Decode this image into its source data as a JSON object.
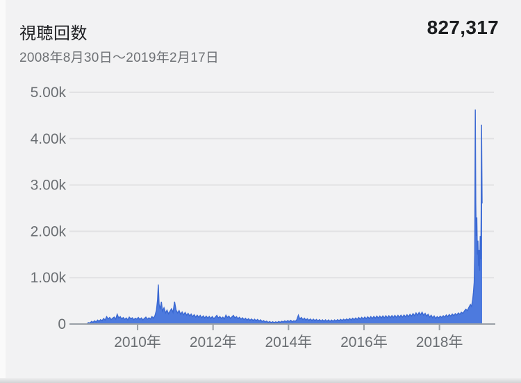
{
  "header": {
    "title": "視聴回数",
    "total": "827,317",
    "date_range": "2008年8月30日〜2019年2月17日"
  },
  "chart_data": {
    "type": "area",
    "title": "視聴回数",
    "total_views": 827317,
    "date_range_label": "2008年8月30日〜2019年2月17日",
    "xlim": [
      2008.655,
      2019.13
    ],
    "ylim": [
      0,
      5000
    ],
    "grid": "horizontal",
    "legend": "none",
    "x_ticks": [
      {
        "v": 2010,
        "label": "2010年"
      },
      {
        "v": 2012,
        "label": "2012年"
      },
      {
        "v": 2014,
        "label": "2014年"
      },
      {
        "v": 2016,
        "label": "2016年"
      },
      {
        "v": 2018,
        "label": "2018年"
      }
    ],
    "y_ticks": [
      {
        "v": 5000,
        "label": "5.00k"
      },
      {
        "v": 4000,
        "label": "4.00k"
      },
      {
        "v": 3000,
        "label": "3.00k"
      },
      {
        "v": 2000,
        "label": "2.00k"
      },
      {
        "v": 1000,
        "label": "1.00k"
      },
      {
        "v": 0,
        "label": "0"
      }
    ],
    "colors": {
      "area_fill": "#4d7ade",
      "area_stroke": "#3a68d2",
      "grid": "#e1e1e3",
      "axis": "#9aa0a6",
      "tick_text": "#6b6f73",
      "title_text": "#202124",
      "total_text": "#1b1d1f"
    },
    "series": [
      {
        "name": "視聴回数",
        "points": [
          [
            2008.66,
            8
          ],
          [
            2008.7,
            30
          ],
          [
            2008.74,
            22
          ],
          [
            2008.78,
            55
          ],
          [
            2008.82,
            38
          ],
          [
            2008.86,
            70
          ],
          [
            2008.9,
            45
          ],
          [
            2008.94,
            85
          ],
          [
            2008.98,
            60
          ],
          [
            2009.02,
            95
          ],
          [
            2009.06,
            70
          ],
          [
            2009.1,
            120
          ],
          [
            2009.14,
            85
          ],
          [
            2009.18,
            160
          ],
          [
            2009.22,
            110
          ],
          [
            2009.26,
            140
          ],
          [
            2009.3,
            95
          ],
          [
            2009.34,
            125
          ],
          [
            2009.38,
            150
          ],
          [
            2009.42,
            105
          ],
          [
            2009.46,
            210
          ],
          [
            2009.5,
            130
          ],
          [
            2009.54,
            160
          ],
          [
            2009.58,
            110
          ],
          [
            2009.62,
            140
          ],
          [
            2009.66,
            100
          ],
          [
            2009.7,
            130
          ],
          [
            2009.74,
            90
          ],
          [
            2009.78,
            150
          ],
          [
            2009.82,
            115
          ],
          [
            2009.86,
            135
          ],
          [
            2009.9,
            95
          ],
          [
            2009.94,
            125
          ],
          [
            2009.98,
            105
          ],
          [
            2010.02,
            140
          ],
          [
            2010.06,
            100
          ],
          [
            2010.1,
            130
          ],
          [
            2010.14,
            90
          ],
          [
            2010.18,
            120
          ],
          [
            2010.22,
            150
          ],
          [
            2010.26,
            105
          ],
          [
            2010.3,
            135
          ],
          [
            2010.34,
            110
          ],
          [
            2010.38,
            160
          ],
          [
            2010.42,
            125
          ],
          [
            2010.46,
            180
          ],
          [
            2010.5,
            300
          ],
          [
            2010.53,
            520
          ],
          [
            2010.55,
            850
          ],
          [
            2010.57,
            430
          ],
          [
            2010.6,
            320
          ],
          [
            2010.63,
            480
          ],
          [
            2010.66,
            280
          ],
          [
            2010.7,
            350
          ],
          [
            2010.74,
            240
          ],
          [
            2010.78,
            300
          ],
          [
            2010.82,
            220
          ],
          [
            2010.86,
            280
          ],
          [
            2010.9,
            330
          ],
          [
            2010.94,
            250
          ],
          [
            2010.98,
            480
          ],
          [
            2011.02,
            300
          ],
          [
            2011.06,
            240
          ],
          [
            2011.1,
            290
          ],
          [
            2011.14,
            210
          ],
          [
            2011.18,
            260
          ],
          [
            2011.22,
            200
          ],
          [
            2011.26,
            250
          ],
          [
            2011.3,
            190
          ],
          [
            2011.34,
            230
          ],
          [
            2011.38,
            175
          ],
          [
            2011.42,
            215
          ],
          [
            2011.46,
            160
          ],
          [
            2011.5,
            200
          ],
          [
            2011.54,
            150
          ],
          [
            2011.58,
            190
          ],
          [
            2011.62,
            145
          ],
          [
            2011.66,
            185
          ],
          [
            2011.7,
            135
          ],
          [
            2011.74,
            175
          ],
          [
            2011.78,
            130
          ],
          [
            2011.82,
            170
          ],
          [
            2011.86,
            125
          ],
          [
            2011.9,
            165
          ],
          [
            2011.94,
            120
          ],
          [
            2011.98,
            160
          ],
          [
            2012.02,
            115
          ],
          [
            2012.06,
            150
          ],
          [
            2012.1,
            185
          ],
          [
            2012.14,
            130
          ],
          [
            2012.18,
            160
          ],
          [
            2012.22,
            120
          ],
          [
            2012.26,
            150
          ],
          [
            2012.3,
            110
          ],
          [
            2012.34,
            190
          ],
          [
            2012.38,
            140
          ],
          [
            2012.42,
            170
          ],
          [
            2012.46,
            120
          ],
          [
            2012.5,
            155
          ],
          [
            2012.54,
            185
          ],
          [
            2012.58,
            130
          ],
          [
            2012.62,
            160
          ],
          [
            2012.66,
            115
          ],
          [
            2012.7,
            145
          ],
          [
            2012.74,
            105
          ],
          [
            2012.78,
            135
          ],
          [
            2012.82,
            95
          ],
          [
            2012.86,
            125
          ],
          [
            2012.9,
            85
          ],
          [
            2012.94,
            115
          ],
          [
            2012.98,
            80
          ],
          [
            2013.02,
            110
          ],
          [
            2013.06,
            75
          ],
          [
            2013.1,
            105
          ],
          [
            2013.14,
            70
          ],
          [
            2013.18,
            100
          ],
          [
            2013.22,
            65
          ],
          [
            2013.26,
            90
          ],
          [
            2013.3,
            55
          ],
          [
            2013.34,
            75
          ],
          [
            2013.38,
            45
          ],
          [
            2013.42,
            65
          ],
          [
            2013.46,
            35
          ],
          [
            2013.5,
            55
          ],
          [
            2013.54,
            30
          ],
          [
            2013.58,
            50
          ],
          [
            2013.62,
            28
          ],
          [
            2013.66,
            48
          ],
          [
            2013.7,
            32
          ],
          [
            2013.74,
            55
          ],
          [
            2013.78,
            38
          ],
          [
            2013.82,
            60
          ],
          [
            2013.86,
            45
          ],
          [
            2013.9,
            70
          ],
          [
            2013.94,
            50
          ],
          [
            2013.98,
            75
          ],
          [
            2014.02,
            55
          ],
          [
            2014.06,
            80
          ],
          [
            2014.1,
            48
          ],
          [
            2014.14,
            72
          ],
          [
            2014.18,
            58
          ],
          [
            2014.22,
            95
          ],
          [
            2014.26,
            190
          ],
          [
            2014.3,
            110
          ],
          [
            2014.34,
            140
          ],
          [
            2014.38,
            95
          ],
          [
            2014.42,
            125
          ],
          [
            2014.46,
            85
          ],
          [
            2014.5,
            115
          ],
          [
            2014.54,
            80
          ],
          [
            2014.58,
            110
          ],
          [
            2014.62,
            75
          ],
          [
            2014.66,
            105
          ],
          [
            2014.7,
            70
          ],
          [
            2014.74,
            100
          ],
          [
            2014.78,
            68
          ],
          [
            2014.82,
            95
          ],
          [
            2014.86,
            65
          ],
          [
            2014.9,
            92
          ],
          [
            2014.94,
            62
          ],
          [
            2014.98,
            90
          ],
          [
            2015.02,
            60
          ],
          [
            2015.06,
            88
          ],
          [
            2015.1,
            58
          ],
          [
            2015.14,
            85
          ],
          [
            2015.18,
            60
          ],
          [
            2015.22,
            90
          ],
          [
            2015.26,
            65
          ],
          [
            2015.3,
            95
          ],
          [
            2015.34,
            70
          ],
          [
            2015.38,
            100
          ],
          [
            2015.42,
            75
          ],
          [
            2015.46,
            105
          ],
          [
            2015.5,
            80
          ],
          [
            2015.54,
            110
          ],
          [
            2015.58,
            85
          ],
          [
            2015.62,
            120
          ],
          [
            2015.66,
            90
          ],
          [
            2015.7,
            125
          ],
          [
            2015.74,
            95
          ],
          [
            2015.78,
            130
          ],
          [
            2015.82,
            100
          ],
          [
            2015.86,
            140
          ],
          [
            2015.9,
            105
          ],
          [
            2015.94,
            145
          ],
          [
            2015.98,
            110
          ],
          [
            2016.02,
            150
          ],
          [
            2016.06,
            115
          ],
          [
            2016.1,
            155
          ],
          [
            2016.14,
            118
          ],
          [
            2016.18,
            160
          ],
          [
            2016.22,
            120
          ],
          [
            2016.26,
            165
          ],
          [
            2016.3,
            125
          ],
          [
            2016.34,
            170
          ],
          [
            2016.38,
            128
          ],
          [
            2016.42,
            172
          ],
          [
            2016.46,
            130
          ],
          [
            2016.5,
            175
          ],
          [
            2016.54,
            132
          ],
          [
            2016.58,
            178
          ],
          [
            2016.62,
            135
          ],
          [
            2016.66,
            180
          ],
          [
            2016.7,
            138
          ],
          [
            2016.74,
            182
          ],
          [
            2016.78,
            140
          ],
          [
            2016.82,
            185
          ],
          [
            2016.86,
            142
          ],
          [
            2016.9,
            188
          ],
          [
            2016.94,
            145
          ],
          [
            2016.98,
            190
          ],
          [
            2017.02,
            150
          ],
          [
            2017.06,
            195
          ],
          [
            2017.1,
            155
          ],
          [
            2017.14,
            200
          ],
          [
            2017.18,
            160
          ],
          [
            2017.22,
            210
          ],
          [
            2017.26,
            170
          ],
          [
            2017.3,
            225
          ],
          [
            2017.34,
            180
          ],
          [
            2017.38,
            240
          ],
          [
            2017.42,
            190
          ],
          [
            2017.46,
            250
          ],
          [
            2017.5,
            200
          ],
          [
            2017.54,
            255
          ],
          [
            2017.58,
            190
          ],
          [
            2017.62,
            230
          ],
          [
            2017.66,
            170
          ],
          [
            2017.7,
            210
          ],
          [
            2017.74,
            150
          ],
          [
            2017.78,
            190
          ],
          [
            2017.82,
            135
          ],
          [
            2017.86,
            175
          ],
          [
            2017.9,
            120
          ],
          [
            2017.94,
            160
          ],
          [
            2017.98,
            130
          ],
          [
            2018.02,
            170
          ],
          [
            2018.06,
            140
          ],
          [
            2018.1,
            180
          ],
          [
            2018.14,
            150
          ],
          [
            2018.18,
            195
          ],
          [
            2018.22,
            160
          ],
          [
            2018.26,
            205
          ],
          [
            2018.3,
            170
          ],
          [
            2018.34,
            215
          ],
          [
            2018.38,
            180
          ],
          [
            2018.42,
            225
          ],
          [
            2018.46,
            195
          ],
          [
            2018.5,
            240
          ],
          [
            2018.54,
            210
          ],
          [
            2018.58,
            255
          ],
          [
            2018.62,
            230
          ],
          [
            2018.66,
            280
          ],
          [
            2018.7,
            320
          ],
          [
            2018.74,
            290
          ],
          [
            2018.78,
            360
          ],
          [
            2018.82,
            420
          ],
          [
            2018.85,
            380
          ],
          [
            2018.88,
            520
          ],
          [
            2018.9,
            680
          ],
          [
            2018.92,
            900
          ],
          [
            2018.935,
            1500
          ],
          [
            2018.95,
            4630
          ],
          [
            2018.962,
            2600
          ],
          [
            2018.975,
            1900
          ],
          [
            2018.99,
            2300
          ],
          [
            2019.005,
            1500
          ],
          [
            2019.02,
            1800
          ],
          [
            2019.035,
            1250
          ],
          [
            2019.05,
            1600
          ],
          [
            2019.065,
            1150
          ],
          [
            2019.08,
            1900
          ],
          [
            2019.095,
            1400
          ],
          [
            2019.105,
            2300
          ],
          [
            2019.115,
            4300
          ],
          [
            2019.122,
            3400
          ],
          [
            2019.13,
            2600
          ]
        ]
      }
    ]
  }
}
